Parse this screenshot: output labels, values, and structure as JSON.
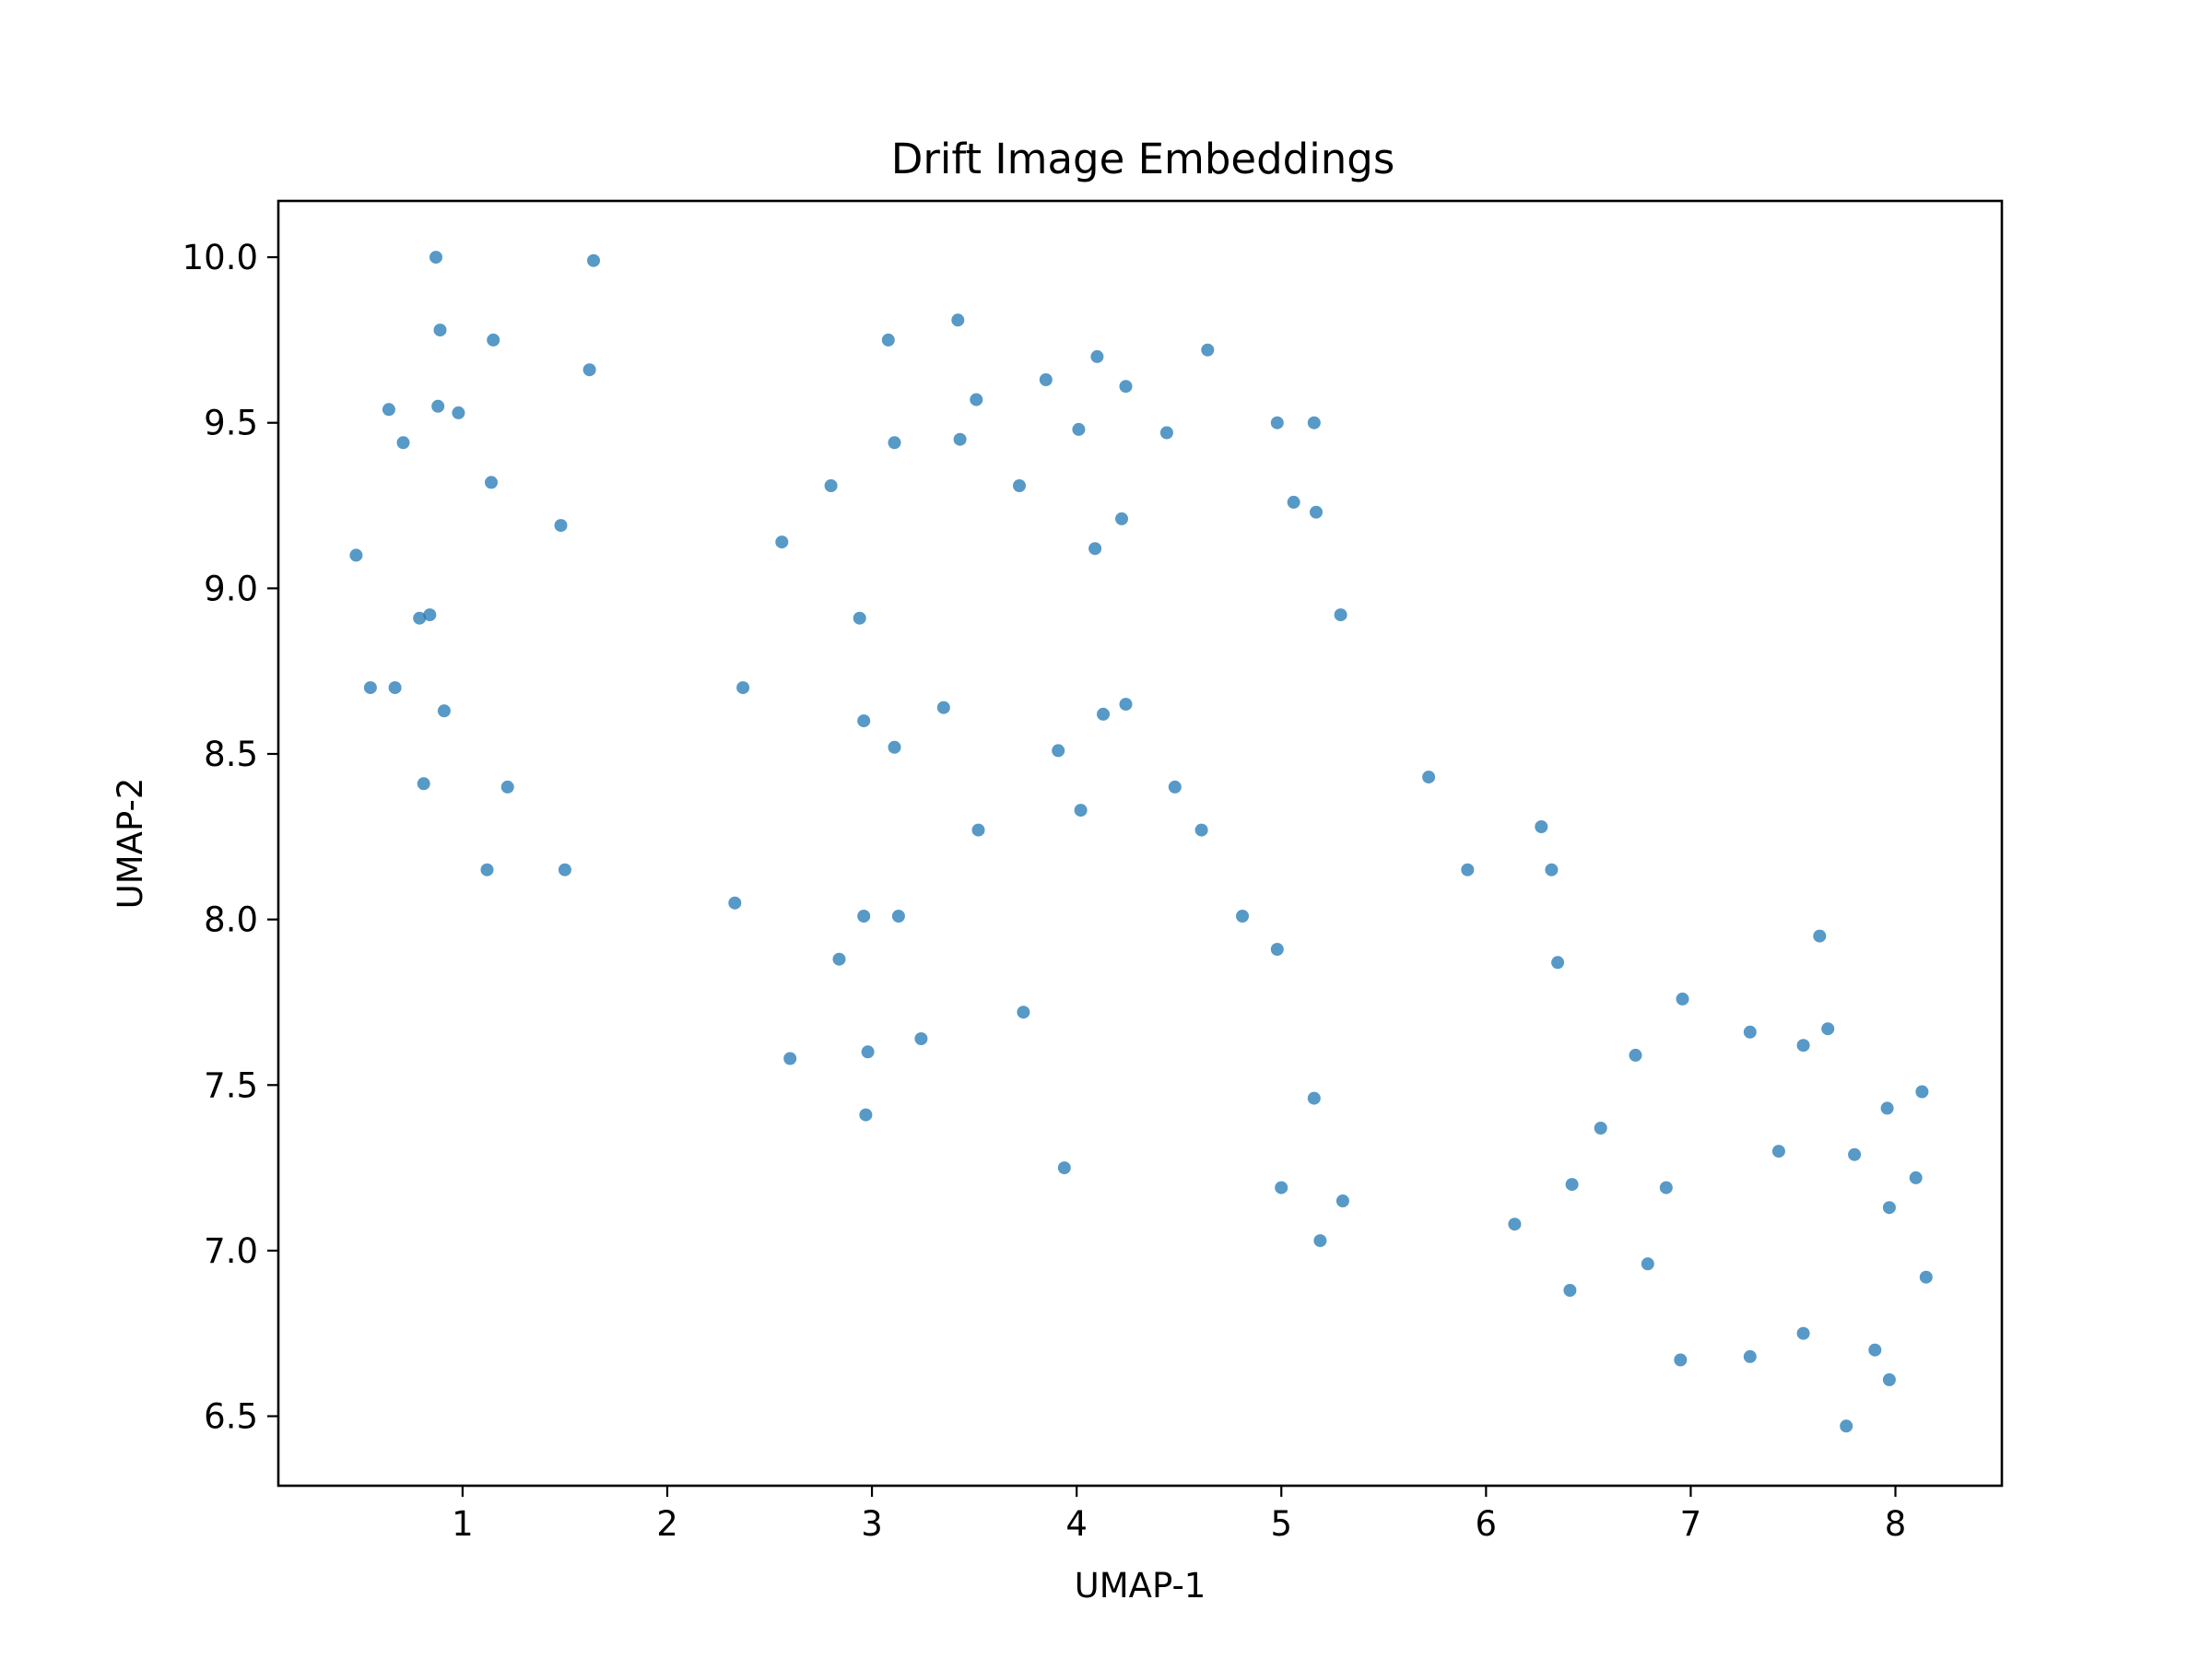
{
  "chart_data": {
    "type": "scatter",
    "title": "Drift Image Embeddings",
    "xlabel": "UMAP-1",
    "ylabel": "UMAP-2",
    "xlim": [
      0.1,
      8.52
    ],
    "ylim": [
      6.29,
      10.17
    ],
    "xticks": [
      "1",
      "2",
      "3",
      "4",
      "5",
      "6",
      "7",
      "8"
    ],
    "xtick_values": [
      1,
      2,
      3,
      4,
      5,
      6,
      7,
      8
    ],
    "yticks": [
      "6.5",
      "7.0",
      "7.5",
      "8.0",
      "8.5",
      "9.0",
      "9.5",
      "10.0"
    ],
    "ytick_values": [
      6.5,
      7.0,
      7.5,
      8.0,
      8.5,
      9.0,
      9.5,
      10.0
    ],
    "grid": false,
    "legend": "none",
    "point_color": "#1f77b4",
    "point_alpha": 0.75,
    "x": [
      0.87,
      1.64,
      0.89,
      1.15,
      1.62,
      0.64,
      0.88,
      0.98,
      0.71,
      1.14,
      1.48,
      0.48,
      0.79,
      0.84,
      0.55,
      0.67,
      0.91,
      0.81,
      1.22,
      1.12,
      1.5,
      3.08,
      3.42,
      3.85,
      4.1,
      4.24,
      4.64,
      3.51,
      4.01,
      4.44,
      3.11,
      3.43,
      2.8,
      3.72,
      2.56,
      4.22,
      4.09,
      4.98,
      5.16,
      5.06,
      5.17,
      5.29,
      2.94,
      2.37,
      3.35,
      4.24,
      4.13,
      2.96,
      3.11,
      3.91,
      4.48,
      4.02,
      3.52,
      4.61,
      2.33,
      2.96,
      3.13,
      2.84,
      4.81,
      4.98,
      3.74,
      3.24,
      2.6,
      2.98,
      2.97,
      3.94,
      5.16,
      5.0,
      5.3,
      5.19,
      5.72,
      5.91,
      6.27,
      6.32,
      6.35,
      6.14,
      6.42,
      6.41,
      6.56,
      6.73,
      6.79,
      6.88,
      6.96,
      6.95,
      7.29,
      7.29,
      7.43,
      7.55,
      7.55,
      7.63,
      7.67,
      7.8,
      7.9,
      7.96,
      7.97,
      7.97,
      8.1,
      8.13,
      8.15,
      7.76
    ],
    "y": [
      10.0,
      9.99,
      9.78,
      9.75,
      9.66,
      9.54,
      9.55,
      9.53,
      9.44,
      9.32,
      9.19,
      9.1,
      8.91,
      8.92,
      8.7,
      8.7,
      8.63,
      8.41,
      8.4,
      8.15,
      8.15,
      9.75,
      9.81,
      9.63,
      9.7,
      9.61,
      9.72,
      9.57,
      9.48,
      9.47,
      9.44,
      9.45,
      9.31,
      9.31,
      9.14,
      9.21,
      9.12,
      9.5,
      9.5,
      9.26,
      9.23,
      8.92,
      8.91,
      8.7,
      8.64,
      8.65,
      8.62,
      8.6,
      8.52,
      8.51,
      8.4,
      8.33,
      8.27,
      8.27,
      8.05,
      8.01,
      8.01,
      7.88,
      8.01,
      7.91,
      7.72,
      7.64,
      7.58,
      7.6,
      7.41,
      7.25,
      7.46,
      7.19,
      7.15,
      7.03,
      8.43,
      8.15,
      8.28,
      8.15,
      7.87,
      7.08,
      7.2,
      6.88,
      7.37,
      7.59,
      6.96,
      7.19,
      7.76,
      6.67,
      7.66,
      6.68,
      7.3,
      7.62,
      6.75,
      7.95,
      7.67,
      7.29,
      6.7,
      7.43,
      7.13,
      6.61,
      7.22,
      7.48,
      6.92,
      6.47
    ]
  }
}
